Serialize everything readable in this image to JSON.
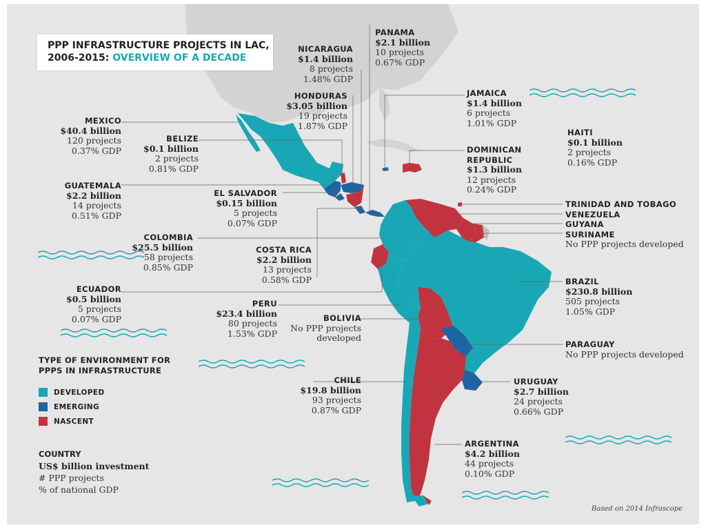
{
  "title": {
    "line1": "PPP INFRASTRUCTURE PROJECTS IN LAC,",
    "line2a": "2006-2015:",
    "line2b": "OVERVIEW OF A DECADE"
  },
  "legend": {
    "title_line1": "TYPE OF ENVIRONMENT FOR",
    "title_line2": "PPPS IN INFRASTRUCTURE",
    "items": [
      {
        "label": "DEVELOPED",
        "color": "#1aa7b5"
      },
      {
        "label": "EMERGING",
        "color": "#1e64a0"
      },
      {
        "label": "NASCENT",
        "color": "#c1343f"
      }
    ]
  },
  "key": {
    "line1": "COUNTRY",
    "line2": "US$ billion investment",
    "line3": "# PPP projects",
    "line4": "% of national GDP"
  },
  "source": "Based on 2014 Infrascope",
  "countries": {
    "mexico": {
      "name": "MEXICO",
      "investment": "$40.4 billion",
      "projects": "120 projects",
      "gdp": "0.37% GDP",
      "type": "developed"
    },
    "belize": {
      "name": "BELIZE",
      "investment": "$0.1 billion",
      "projects": "2 projects",
      "gdp": "0.81% GDP",
      "type": "nascent"
    },
    "guatemala": {
      "name": "GUATEMALA",
      "investment": "$2.2 billion",
      "projects": "14 projects",
      "gdp": "0.51% GDP",
      "type": "emerging"
    },
    "el_salvador": {
      "name": "EL SALVADOR",
      "investment": "$0.15 billion",
      "projects": "5 projects",
      "gdp": "0.07% GDP",
      "type": "emerging"
    },
    "honduras": {
      "name": "HONDURAS",
      "investment": "$3.05 billion",
      "projects": "19 projects",
      "gdp": "1.87% GDP",
      "type": "emerging"
    },
    "nicaragua": {
      "name": "NICARAGUA",
      "investment": "$1.4 billion",
      "projects": "8 projects",
      "gdp": "1.48% GDP",
      "type": "nascent"
    },
    "costa_rica": {
      "name": "COSTA RICA",
      "investment": "$2.2 billion",
      "projects": "13 projects",
      "gdp": "0.58% GDP",
      "type": "emerging"
    },
    "panama": {
      "name": "PANAMA",
      "investment": "$2.1 billion",
      "projects": "10 projects",
      "gdp": "0.67% GDP",
      "type": "emerging"
    },
    "jamaica": {
      "name": "JAMAICA",
      "investment": "$1.4 billion",
      "projects": "6 projects",
      "gdp": "1.01% GDP",
      "type": "emerging"
    },
    "haiti": {
      "name": "HAITI",
      "investment": "$0.1 billion",
      "projects": "2 projects",
      "gdp": "0.16% GDP",
      "type": "nascent"
    },
    "dominican_republic": {
      "name_line1": "DOMINICAN",
      "name_line2": "REPUBLIC",
      "investment": "$1.3 billion",
      "projects": "12 projects",
      "gdp": "0.24% GDP",
      "type": "nascent"
    },
    "colombia": {
      "name": "COLOMBIA",
      "investment": "$25.5 billion",
      "projects": "58 projects",
      "gdp": "0.85% GDP",
      "type": "developed"
    },
    "ecuador": {
      "name": "ECUADOR",
      "investment": "$0.5 billion",
      "projects": "5 projects",
      "gdp": "0.07% GDP",
      "type": "nascent"
    },
    "peru": {
      "name": "PERU",
      "investment": "$23.4 billion",
      "projects": "80 projects",
      "gdp": "1.53% GDP",
      "type": "developed"
    },
    "bolivia": {
      "name": "BOLIVIA",
      "note_line1": "No PPP projects",
      "note_line2": "developed",
      "type": "nascent"
    },
    "chile": {
      "name": "CHILE",
      "investment": "$19.8 billion",
      "projects": "93 projects",
      "gdp": "0.87% GDP",
      "type": "developed"
    },
    "argentina": {
      "name": "ARGENTINA",
      "investment": "$4.2 billion",
      "projects": "44 projects",
      "gdp": "0.10% GDP",
      "type": "nascent"
    },
    "brazil": {
      "name": "BRAZIL",
      "investment": "$230.8 billion",
      "projects": "505 projects",
      "gdp": "1.05% GDP",
      "type": "developed"
    },
    "paraguay": {
      "name": "PARAGUAY",
      "note": "No PPP projects developed",
      "type": "emerging"
    },
    "uruguay": {
      "name": "URUGUAY",
      "investment": "$2.7 billion",
      "projects": "24 projects",
      "gdp": "0.66% GDP",
      "type": "emerging"
    },
    "trinidad_and_tobago": {
      "name": "TRINIDAD AND TOBAGO",
      "type": "nascent"
    },
    "venezuela": {
      "name": "VENEZUELA",
      "type": "nascent"
    },
    "guyana": {
      "name": "GUYANA",
      "type": "nascent"
    },
    "suriname": {
      "name": "SURINAME",
      "note": "No PPP projects developed",
      "type": "nascent"
    }
  }
}
